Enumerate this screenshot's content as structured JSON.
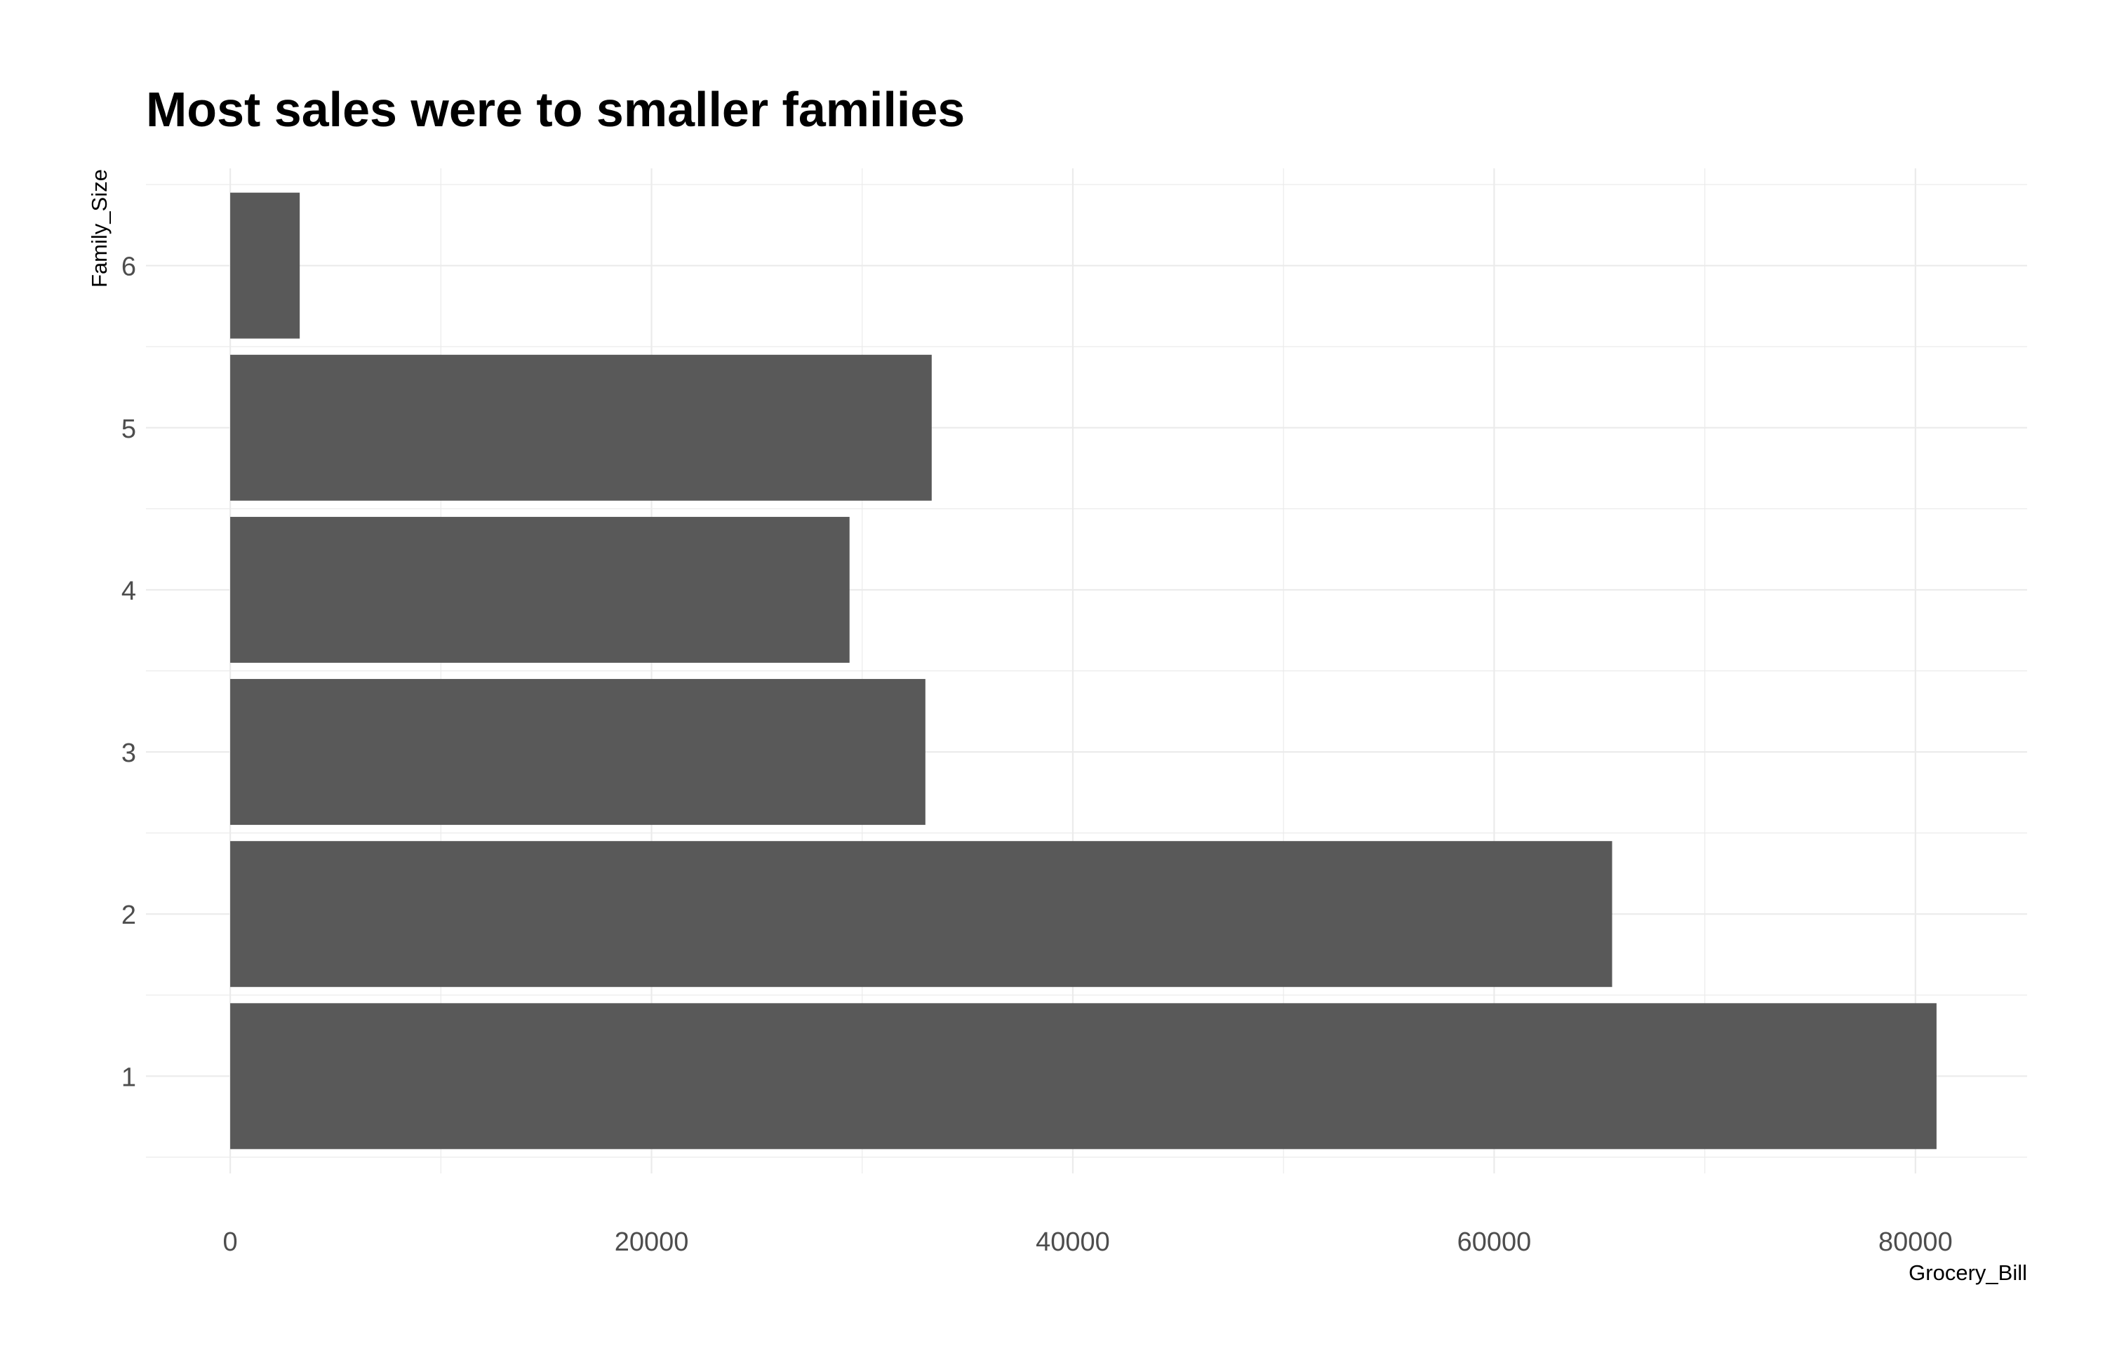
{
  "chart_data": {
    "type": "bar",
    "orientation": "horizontal",
    "title": "Most sales were to smaller families",
    "xlabel": "Grocery_Bill",
    "ylabel": "Family_Size",
    "categories": [
      "1",
      "2",
      "3",
      "4",
      "5",
      "6"
    ],
    "values": [
      81000,
      65600,
      33000,
      29400,
      33300,
      3300
    ],
    "xlim": [
      -4000,
      85300
    ],
    "xticks": [
      0,
      20000,
      40000,
      60000,
      80000
    ],
    "xtick_labels": [
      "0",
      "20000",
      "40000",
      "60000",
      "80000"
    ],
    "bar_color": "#595959",
    "grid": true,
    "grid_color": "#ebebeb",
    "legend": "none"
  }
}
